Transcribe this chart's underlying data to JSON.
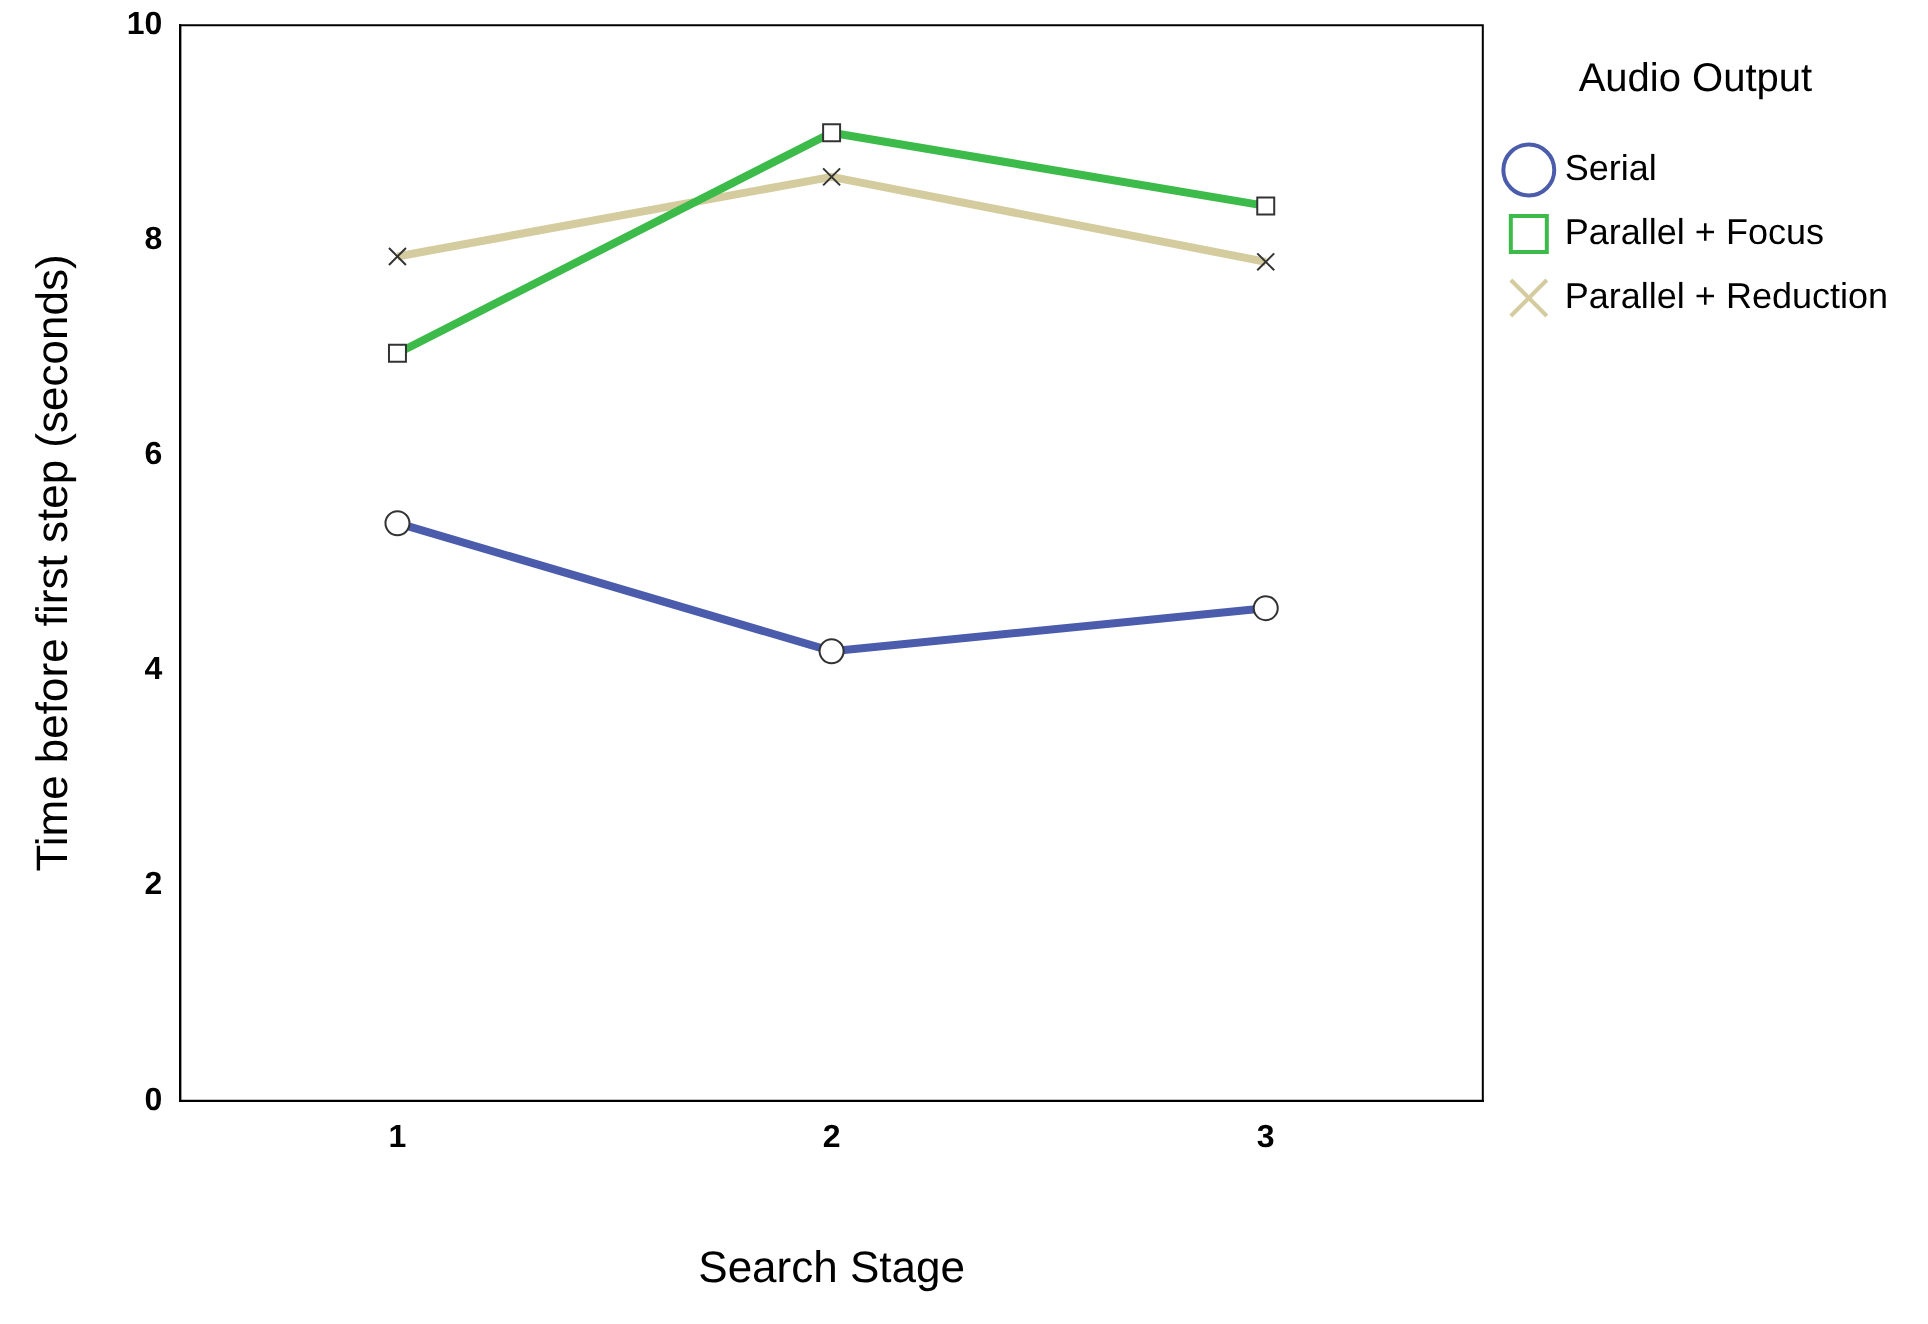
{
  "chart_data": {
    "type": "line",
    "xlabel": "Search Stage",
    "ylabel": "Time before first step (seconds)",
    "legend_title": "Audio Output",
    "categories": [
      "1",
      "2",
      "3"
    ],
    "series": [
      {
        "name": "Serial",
        "color": "#4a5cab",
        "marker": "circle",
        "values": [
          5.37,
          4.18,
          4.58
        ]
      },
      {
        "name": "Parallel + Focus",
        "color": "#3dbb4a",
        "marker": "square",
        "values": [
          6.95,
          9.0,
          8.32
        ]
      },
      {
        "name": "Parallel + Reduction",
        "color": "#d4cc9e",
        "marker": "cross",
        "values": [
          7.85,
          8.59,
          7.8
        ]
      }
    ],
    "ylim": [
      0,
      10
    ],
    "yticks": [
      0,
      2,
      4,
      6,
      8,
      10
    ],
    "grid": false,
    "legend": "top right"
  }
}
